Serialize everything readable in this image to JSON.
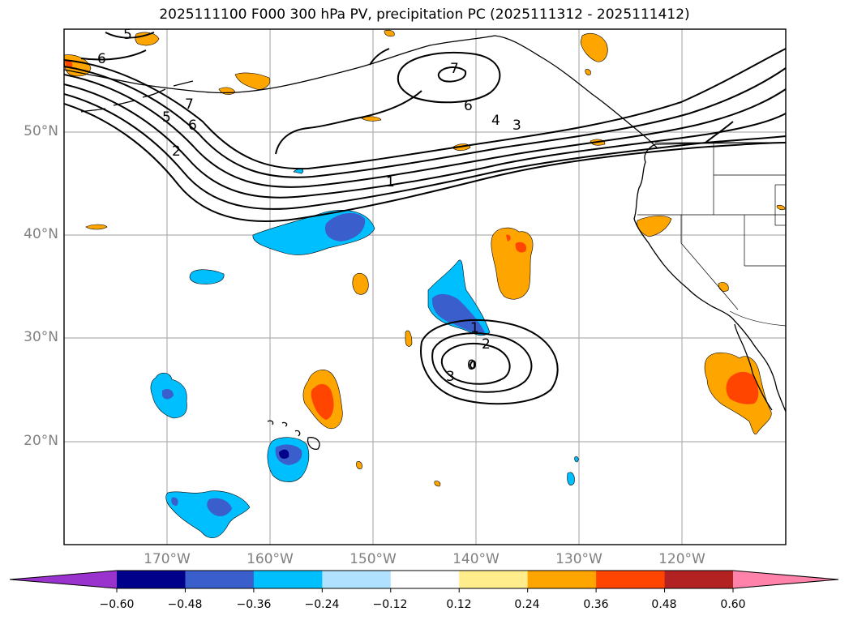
{
  "title": "2025111100 F000 300 hPa PV, precipitation PC (2025111312 - 2025111412)",
  "lat_labels": [
    "50°N",
    "40°N",
    "30°N",
    "20°N"
  ],
  "lon_labels": [
    "170°W",
    "160°W",
    "150°W",
    "140°W",
    "130°W",
    "120°W"
  ],
  "colorbar": {
    "ticks": [
      "−0.60",
      "−0.48",
      "−0.36",
      "−0.24",
      "−0.12",
      "0.12",
      "0.24",
      "0.36",
      "0.48",
      "0.60"
    ],
    "colors": [
      "#9a32cd",
      "#00008b",
      "#3a5fcd",
      "#00bfff",
      "#b0e2ff",
      "#ffffff",
      "#ffec8b",
      "#ffa500",
      "#ff4500",
      "#b22222",
      "#ff82ab"
    ]
  },
  "pv_contour_labels": [
    "5",
    "6",
    "7",
    "6",
    "4",
    "3",
    "5",
    "6",
    "2",
    "1",
    "7",
    "1",
    "2",
    "3",
    "0"
  ],
  "fill_colors": {
    "orange": "#ffa500",
    "red_orange": "#ff4500",
    "light_blue": "#00bfff",
    "blue": "#3a5fcd",
    "navy": "#00008b"
  }
}
